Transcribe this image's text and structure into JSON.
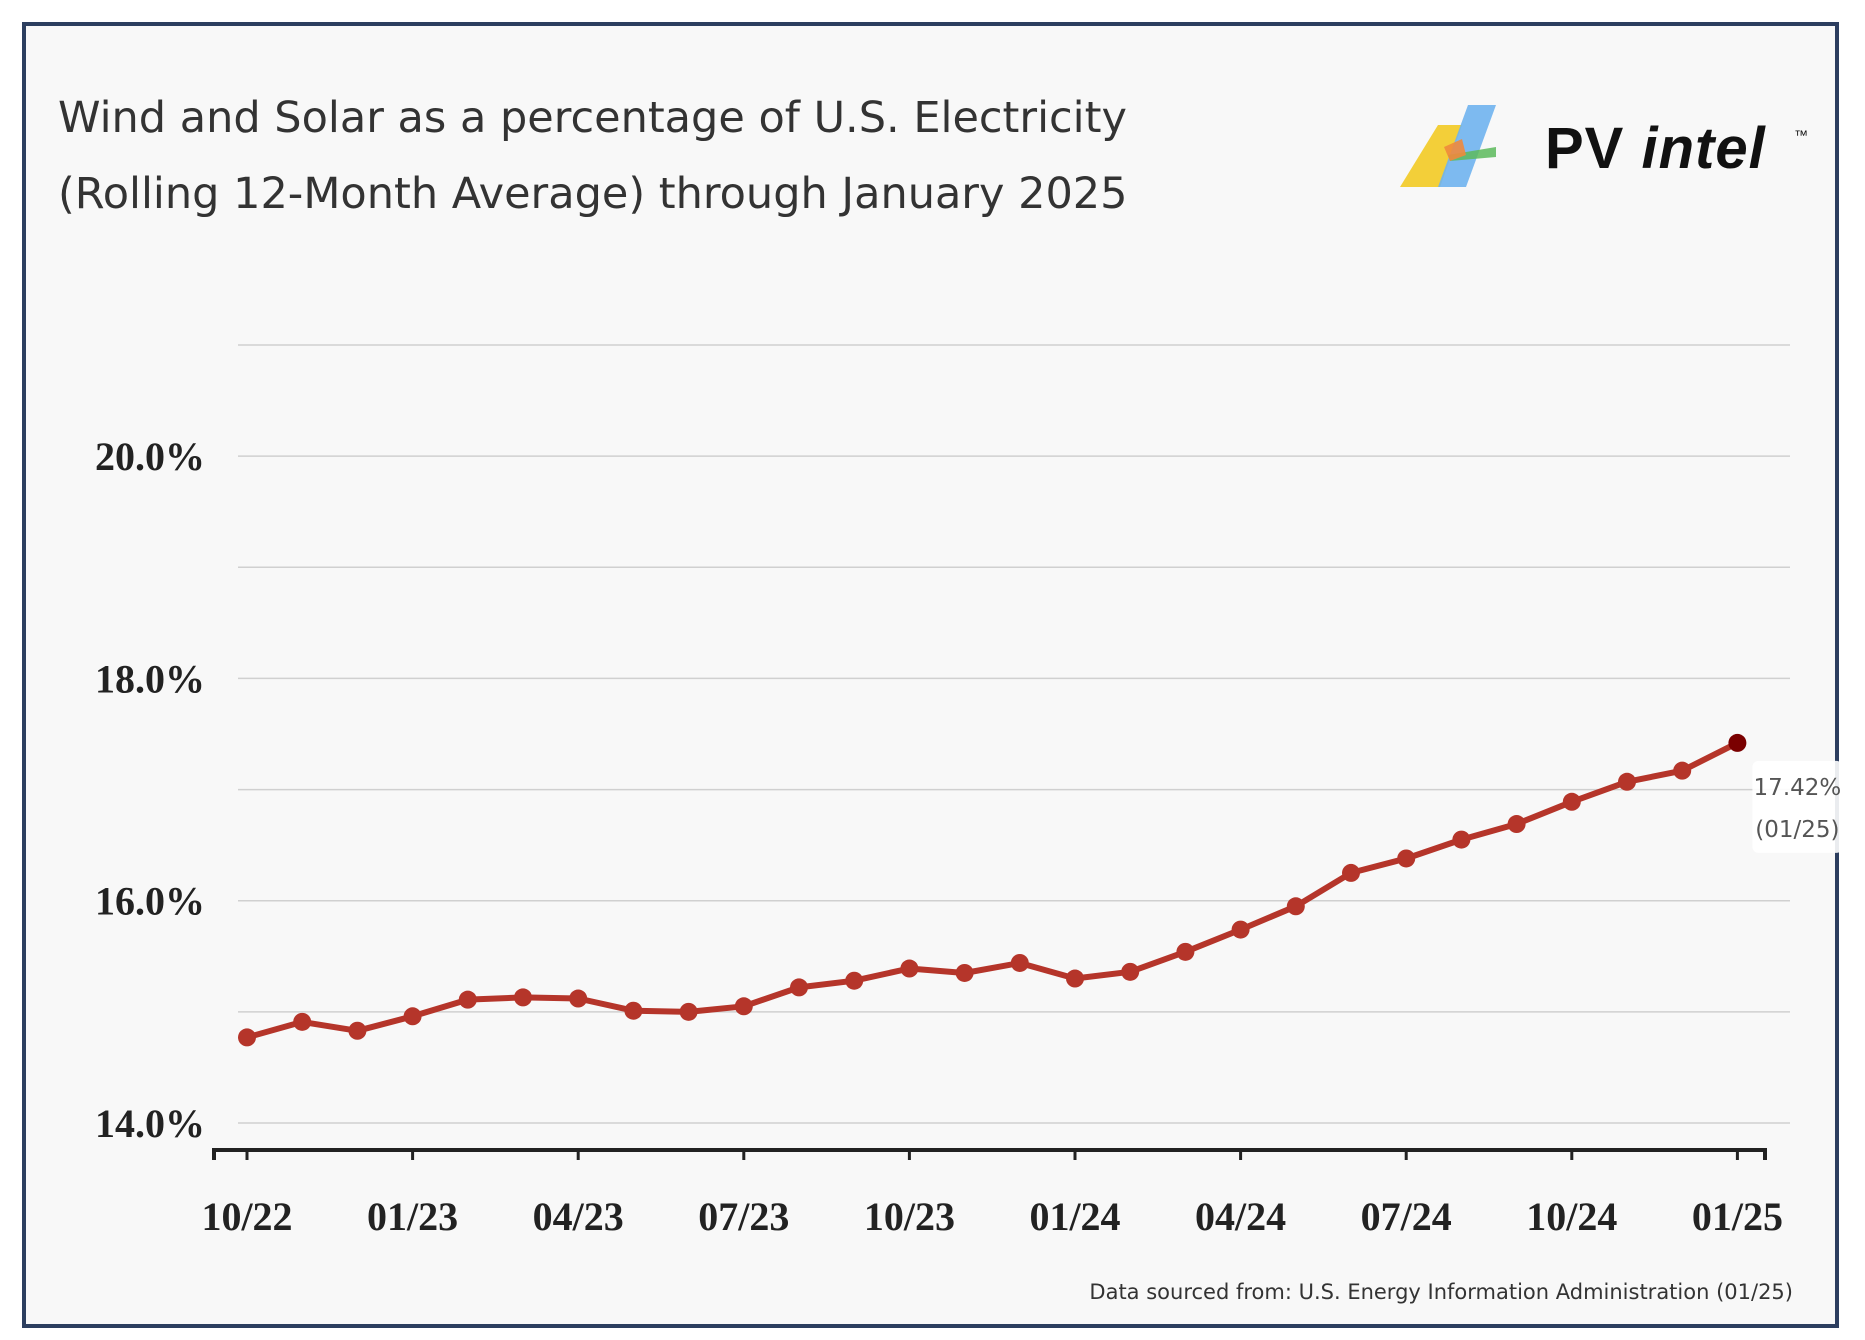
{
  "title_line1": "Wind and Solar as a percentage of U.S. Electricity",
  "title_line2": "(Rolling 12-Month Average) through January 2025",
  "logo": {
    "text_main": "PV ",
    "text_italic": "intel",
    "trademark": "™"
  },
  "source_note": "Data sourced from: U.S. Energy Information Administration (01/25)",
  "colors": {
    "line": "#b5352a",
    "last_point": "#7a0000",
    "grid": "#d0d0d0",
    "axis": "#222222"
  },
  "chart_data": {
    "type": "line",
    "title": "Wind and Solar as a percentage of U.S. Electricity (Rolling 12-Month Average) through January 2025",
    "x": [
      "10/22",
      "11/22",
      "12/22",
      "01/23",
      "02/23",
      "03/23",
      "04/23",
      "05/23",
      "06/23",
      "07/23",
      "08/23",
      "09/23",
      "10/23",
      "11/23",
      "12/23",
      "01/24",
      "02/24",
      "03/24",
      "04/24",
      "05/24",
      "06/24",
      "07/24",
      "08/24",
      "09/24",
      "10/24",
      "11/24",
      "12/24",
      "01/25"
    ],
    "series": [
      {
        "values": [
          14.77,
          14.91,
          14.83,
          14.96,
          15.11,
          15.13,
          15.12,
          15.01,
          15.0,
          15.05,
          15.22,
          15.28,
          15.39,
          15.35,
          15.44,
          15.3,
          15.36,
          15.54,
          15.74,
          15.95,
          16.25,
          16.38,
          16.55,
          16.69,
          16.89,
          17.07,
          17.17,
          17.42
        ]
      }
    ],
    "x_ticks": [
      "10/22",
      "01/23",
      "04/23",
      "07/23",
      "10/23",
      "01/24",
      "04/24",
      "07/24",
      "10/24",
      "01/25"
    ],
    "y_ticks": [
      "14.0%",
      "16.0%",
      "18.0%",
      "20.0%"
    ],
    "y_tick_values": [
      14,
      16,
      18,
      20
    ],
    "ylim": [
      14,
      21
    ],
    "xlabel": "",
    "ylabel": "",
    "grid": true,
    "annotation": {
      "value_label": "17.42%",
      "date_label": "(01/25)"
    }
  }
}
